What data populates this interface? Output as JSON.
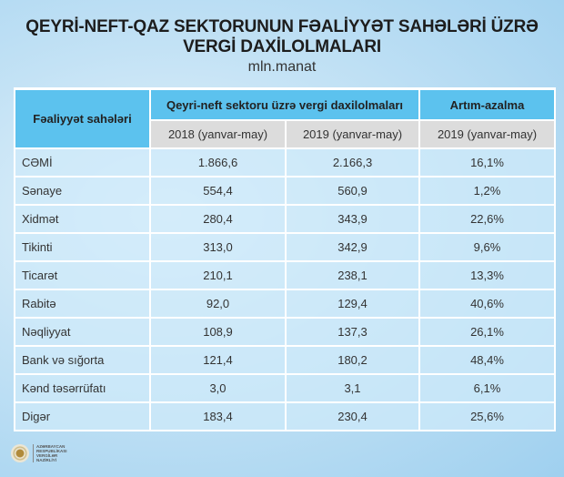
{
  "title_line1": "QEYRİ-NEFT-QAZ SEKTORUNUN FƏALİYYƏT SAHƏLƏRİ ÜZRƏ",
  "title_line2": "VERGİ DAXİLOLMALARI",
  "unit": "mln.manat",
  "header": {
    "col1": "Fəaliyyət sahələri",
    "group": "Qeyri-neft sektoru üzrə vergi daxilolmaları",
    "change": "Artım-azalma",
    "sub1": "2018 (yanvar-may)",
    "sub2": "2019 (yanvar-may)",
    "sub3": "2019 (yanvar-may)"
  },
  "rows": [
    {
      "name": "CƏMİ",
      "v2018": "1.866,6",
      "v2019": "2.166,3",
      "change": "16,1%"
    },
    {
      "name": "Sənaye",
      "v2018": "554,4",
      "v2019": "560,9",
      "change": "1,2%"
    },
    {
      "name": "Xidmət",
      "v2018": "280,4",
      "v2019": "343,9",
      "change": "22,6%"
    },
    {
      "name": "Tikinti",
      "v2018": "313,0",
      "v2019": "342,9",
      "change": "9,6%"
    },
    {
      "name": "Ticarət",
      "v2018": "210,1",
      "v2019": "238,1",
      "change": "13,3%"
    },
    {
      "name": "Rabitə",
      "v2018": "92,0",
      "v2019": "129,4",
      "change": "40,6%"
    },
    {
      "name": "Nəqliyyat",
      "v2018": "108,9",
      "v2019": "137,3",
      "change": "26,1%"
    },
    {
      "name": "Bank və sığorta",
      "v2018": "121,4",
      "v2019": "180,2",
      "change": "48,4%"
    },
    {
      "name": "Kənd təsərrüfatı",
      "v2018": "3,0",
      "v2019": "3,1",
      "change": "6,1%"
    },
    {
      "name": "Digər",
      "v2018": "183,4",
      "v2019": "230,4",
      "change": "25,6%"
    }
  ],
  "logo": {
    "lines": [
      "AZƏRBAYCAN",
      "RESPUBLİKASI",
      "VERGİLƏR",
      "NAZİRLİYİ"
    ]
  },
  "colors": {
    "header_blue": "#5cc2ee",
    "subheader_gray": "#dcdcdc",
    "row_blue": "#cde9fa"
  }
}
